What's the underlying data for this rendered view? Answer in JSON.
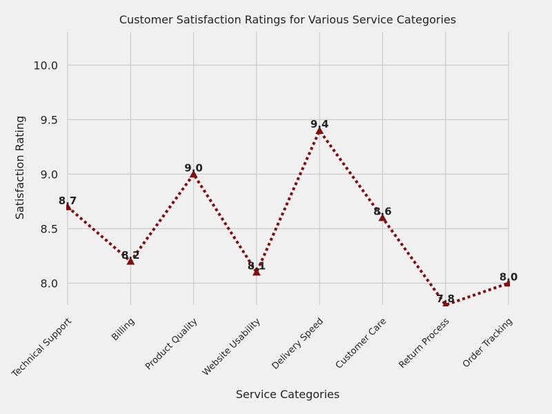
{
  "chart_data": {
    "type": "line",
    "title": "Customer Satisfaction Ratings for Various Service Categories",
    "xlabel": "Service Categories",
    "ylabel": "Satisfaction Rating",
    "categories": [
      "Technical Support",
      "Billing",
      "Product Quality",
      "Website Usability",
      "Delivery Speed",
      "Customer Care",
      "Return Process",
      "Order Tracking"
    ],
    "series": [
      {
        "values": [
          8.7,
          8.2,
          9.0,
          8.1,
          9.4,
          8.6,
          7.8,
          8.0
        ],
        "color": "#7b1113",
        "line_style": "dotted",
        "marker": "triangle"
      }
    ],
    "data_labels": [
      "8.7",
      "8.2",
      "9.0",
      "8.1",
      "9.4",
      "8.6",
      "7.8",
      "8.0"
    ],
    "ylim": [
      7.8,
      10.3
    ],
    "yticks": [
      8.0,
      8.5,
      9.0,
      9.5,
      10.0
    ],
    "ytick_labels": [
      "8.0",
      "8.5",
      "9.0",
      "9.5",
      "10.0"
    ],
    "grid": true,
    "background_color": "#f0f0f0",
    "grid_color": "#cbcbcb"
  }
}
